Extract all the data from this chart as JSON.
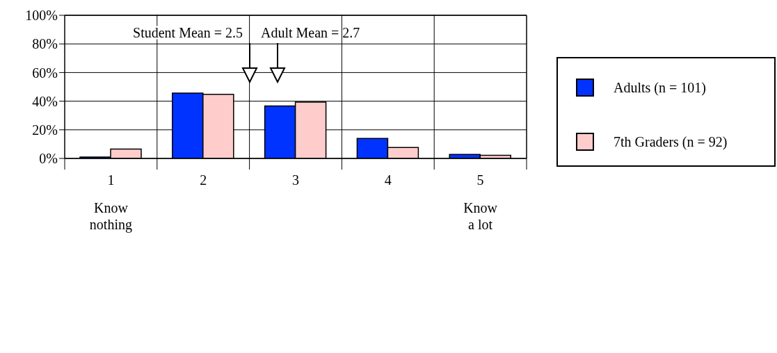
{
  "chart_data": {
    "type": "bar",
    "categories": [
      "1\nKnow\nnothing",
      "2",
      "3",
      "4",
      "5\nKnow\na lot"
    ],
    "series": [
      {
        "name": "Adults (n = 101)",
        "color": "#0033ff",
        "values": [
          1,
          45.6,
          36.6,
          14,
          2.8
        ]
      },
      {
        "name": "7th Graders (n = 92)",
        "color": "#ffcccc",
        "values": [
          6.6,
          44.8,
          39.3,
          7.7,
          2.2
        ]
      }
    ],
    "ylim": [
      0,
      100
    ],
    "yticks": [
      {
        "value": 0,
        "label": "0%"
      },
      {
        "value": 20,
        "label": "20%"
      },
      {
        "value": 40,
        "label": "40%"
      },
      {
        "value": 60,
        "label": "60%"
      },
      {
        "value": 80,
        "label": "80%"
      },
      {
        "value": 100,
        "label": "100%"
      }
    ],
    "grid": true,
    "legend": "right",
    "annotations": [
      "Student Mean = 2.5",
      "Adult Mean = 2.7"
    ]
  }
}
